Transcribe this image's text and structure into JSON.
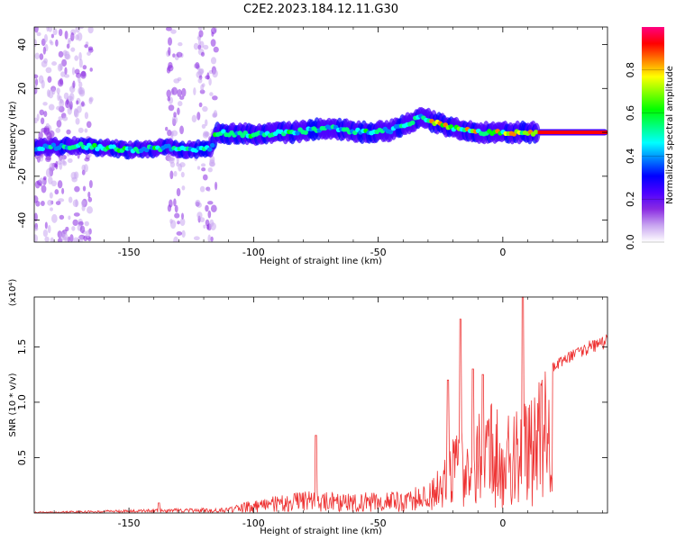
{
  "title": "C2E2.2023.184.12.11.G30",
  "chart_data": [
    {
      "type": "heatmap",
      "xlabel": "Height of straight line (km)",
      "ylabel": "Frequency (Hz)",
      "xlim": [
        -188,
        42
      ],
      "ylim": [
        -50,
        48
      ],
      "xticks": [
        -150,
        -100,
        -50,
        0
      ],
      "yticks": [
        40,
        20,
        0,
        -20,
        -40
      ],
      "colorbar": {
        "label": "Normalized spectral amplitude",
        "range": [
          0,
          1
        ],
        "ticks": [
          "0.0",
          "0.2",
          "0.4",
          "0.6",
          "0.8"
        ],
        "colormap": [
          "#ffffff",
          "#c9a6f0",
          "#8a2be2",
          "#4b00ff",
          "#0000ff",
          "#0080ff",
          "#00ffff",
          "#00ff80",
          "#00ff00",
          "#80ff00",
          "#ffff00",
          "#ff8000",
          "#ff0000",
          "#ff0080"
        ]
      },
      "ridge": {
        "x": [
          -188,
          -170,
          -150,
          -135,
          -125,
          -117,
          -115,
          -100,
          -85,
          -70,
          -55,
          -45,
          -40,
          -33,
          -28,
          -20,
          -10,
          0,
          15,
          42
        ],
        "y": [
          -7,
          -6,
          -8,
          -7,
          -8,
          -7,
          0,
          -1,
          0,
          2,
          0,
          1,
          3,
          7,
          5,
          2,
          0,
          0,
          0,
          0
        ]
      }
    },
    {
      "type": "line",
      "xlabel": "Height of straight line (km)",
      "ylabel": "SNR (10 * v/v)",
      "y_multiplier": "(x10⁴)",
      "xlim": [
        -188,
        42
      ],
      "ylim": [
        0,
        1.95
      ],
      "xticks": [
        -150,
        -100,
        -50,
        0
      ],
      "yticks": [
        "0.5",
        "1.0",
        "1.5"
      ],
      "color": "#ee3333",
      "envelope": {
        "x": [
          -188,
          -150,
          -110,
          -100,
          -80,
          -60,
          -40,
          -30,
          -25,
          -20,
          -15,
          -10,
          -5,
          0,
          5,
          10,
          20,
          30,
          42
        ],
        "y": [
          0.01,
          0.03,
          0.05,
          0.12,
          0.2,
          0.18,
          0.2,
          0.3,
          0.45,
          0.7,
          0.8,
          0.9,
          1.0,
          0.9,
          0.9,
          1.15,
          1.35,
          1.5,
          1.6
        ]
      },
      "spikes": [
        {
          "x": -138,
          "y": 0.09
        },
        {
          "x": -75,
          "y": 0.7
        },
        {
          "x": -22,
          "y": 1.2
        },
        {
          "x": -17,
          "y": 1.75
        },
        {
          "x": -12,
          "y": 1.3
        },
        {
          "x": -8,
          "y": 1.25
        },
        {
          "x": 8,
          "y": 1.95
        }
      ]
    }
  ]
}
